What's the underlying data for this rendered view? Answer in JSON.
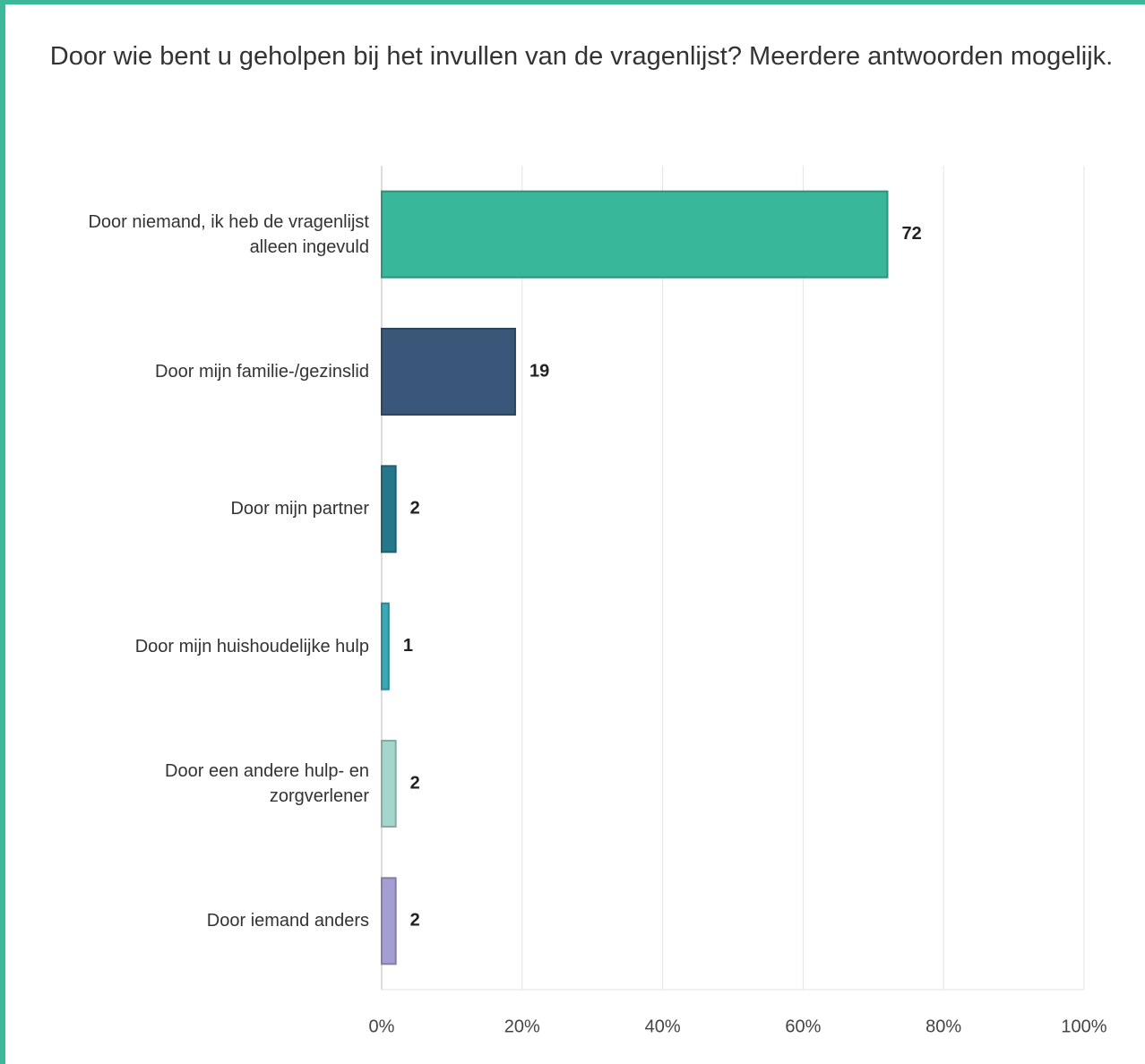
{
  "chart_data": {
    "type": "barh",
    "title": "Door wie bent u geholpen bij het invullen van de vragenlijst? Meerdere antwoorden mogelijk.",
    "categories": [
      "Door niemand, ik heb de vragenlijst alleen ingevuld",
      "Door mijn familie-/gezinslid",
      "Door mijn partner",
      "Door mijn huishoudelijke hulp",
      "Door een andere hulp- en zorgverlener",
      "Door iemand anders"
    ],
    "values": [
      72,
      19,
      2,
      1,
      2,
      2
    ],
    "colors": [
      "#38b79a",
      "#3a5678",
      "#24788a",
      "#3ba7b7",
      "#a5d6cc",
      "#a49ed2"
    ],
    "xlim": [
      0,
      100
    ],
    "xticks": [
      {
        "value": 0,
        "label": "0%"
      },
      {
        "value": 20,
        "label": "20%"
      },
      {
        "value": 40,
        "label": "40%"
      },
      {
        "value": 60,
        "label": "60%"
      },
      {
        "value": 80,
        "label": "80%"
      },
      {
        "value": 100,
        "label": "100%"
      }
    ],
    "grid": true
  }
}
